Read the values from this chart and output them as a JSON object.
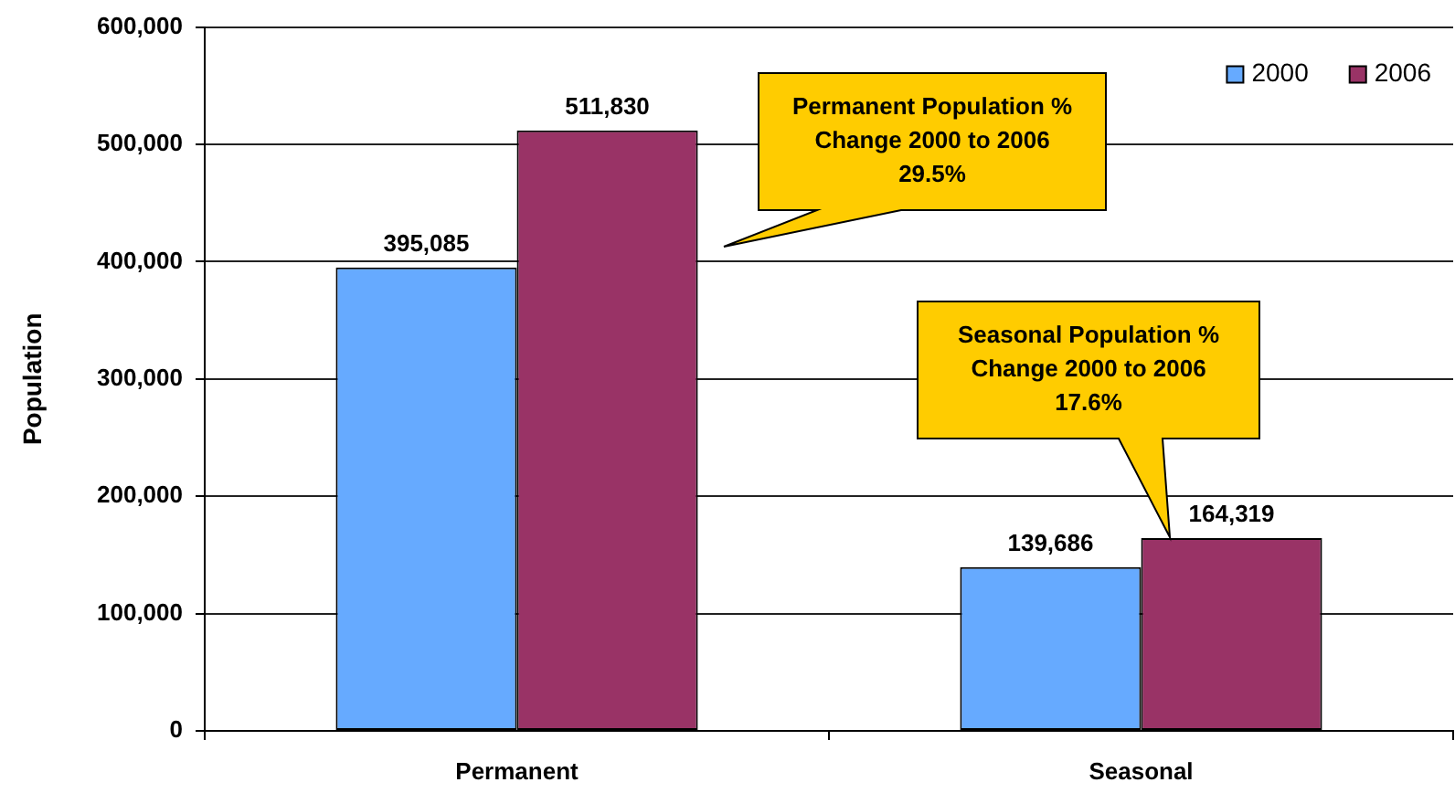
{
  "chart_data": {
    "type": "bar",
    "categories": [
      "Permanent",
      "Seasonal"
    ],
    "series": [
      {
        "name": "2000",
        "color": "#66aaff",
        "values": [
          395085,
          139686
        ],
        "value_labels": [
          "395,085",
          "139,686"
        ]
      },
      {
        "name": "2006",
        "color": "#993366",
        "values": [
          511830,
          164319
        ],
        "value_labels": [
          "511,830",
          "164,319"
        ]
      }
    ],
    "ylabel": "Population",
    "ylim": [
      0,
      600000
    ],
    "yticks": [
      {
        "value": 0,
        "label": "0"
      },
      {
        "value": 100000,
        "label": "100,000"
      },
      {
        "value": 200000,
        "label": "200,000"
      },
      {
        "value": 300000,
        "label": "300,000"
      },
      {
        "value": 400000,
        "label": "400,000"
      },
      {
        "value": 500000,
        "label": "500,000"
      },
      {
        "value": 600000,
        "label": "600,000"
      }
    ],
    "grid": "y",
    "legend": "top right",
    "annotations": [
      "Permanent Population %\nChange 2000 to 2006\n29.5%",
      "Seasonal Population %\nChange 2000 to 2006\n17.6%"
    ]
  }
}
